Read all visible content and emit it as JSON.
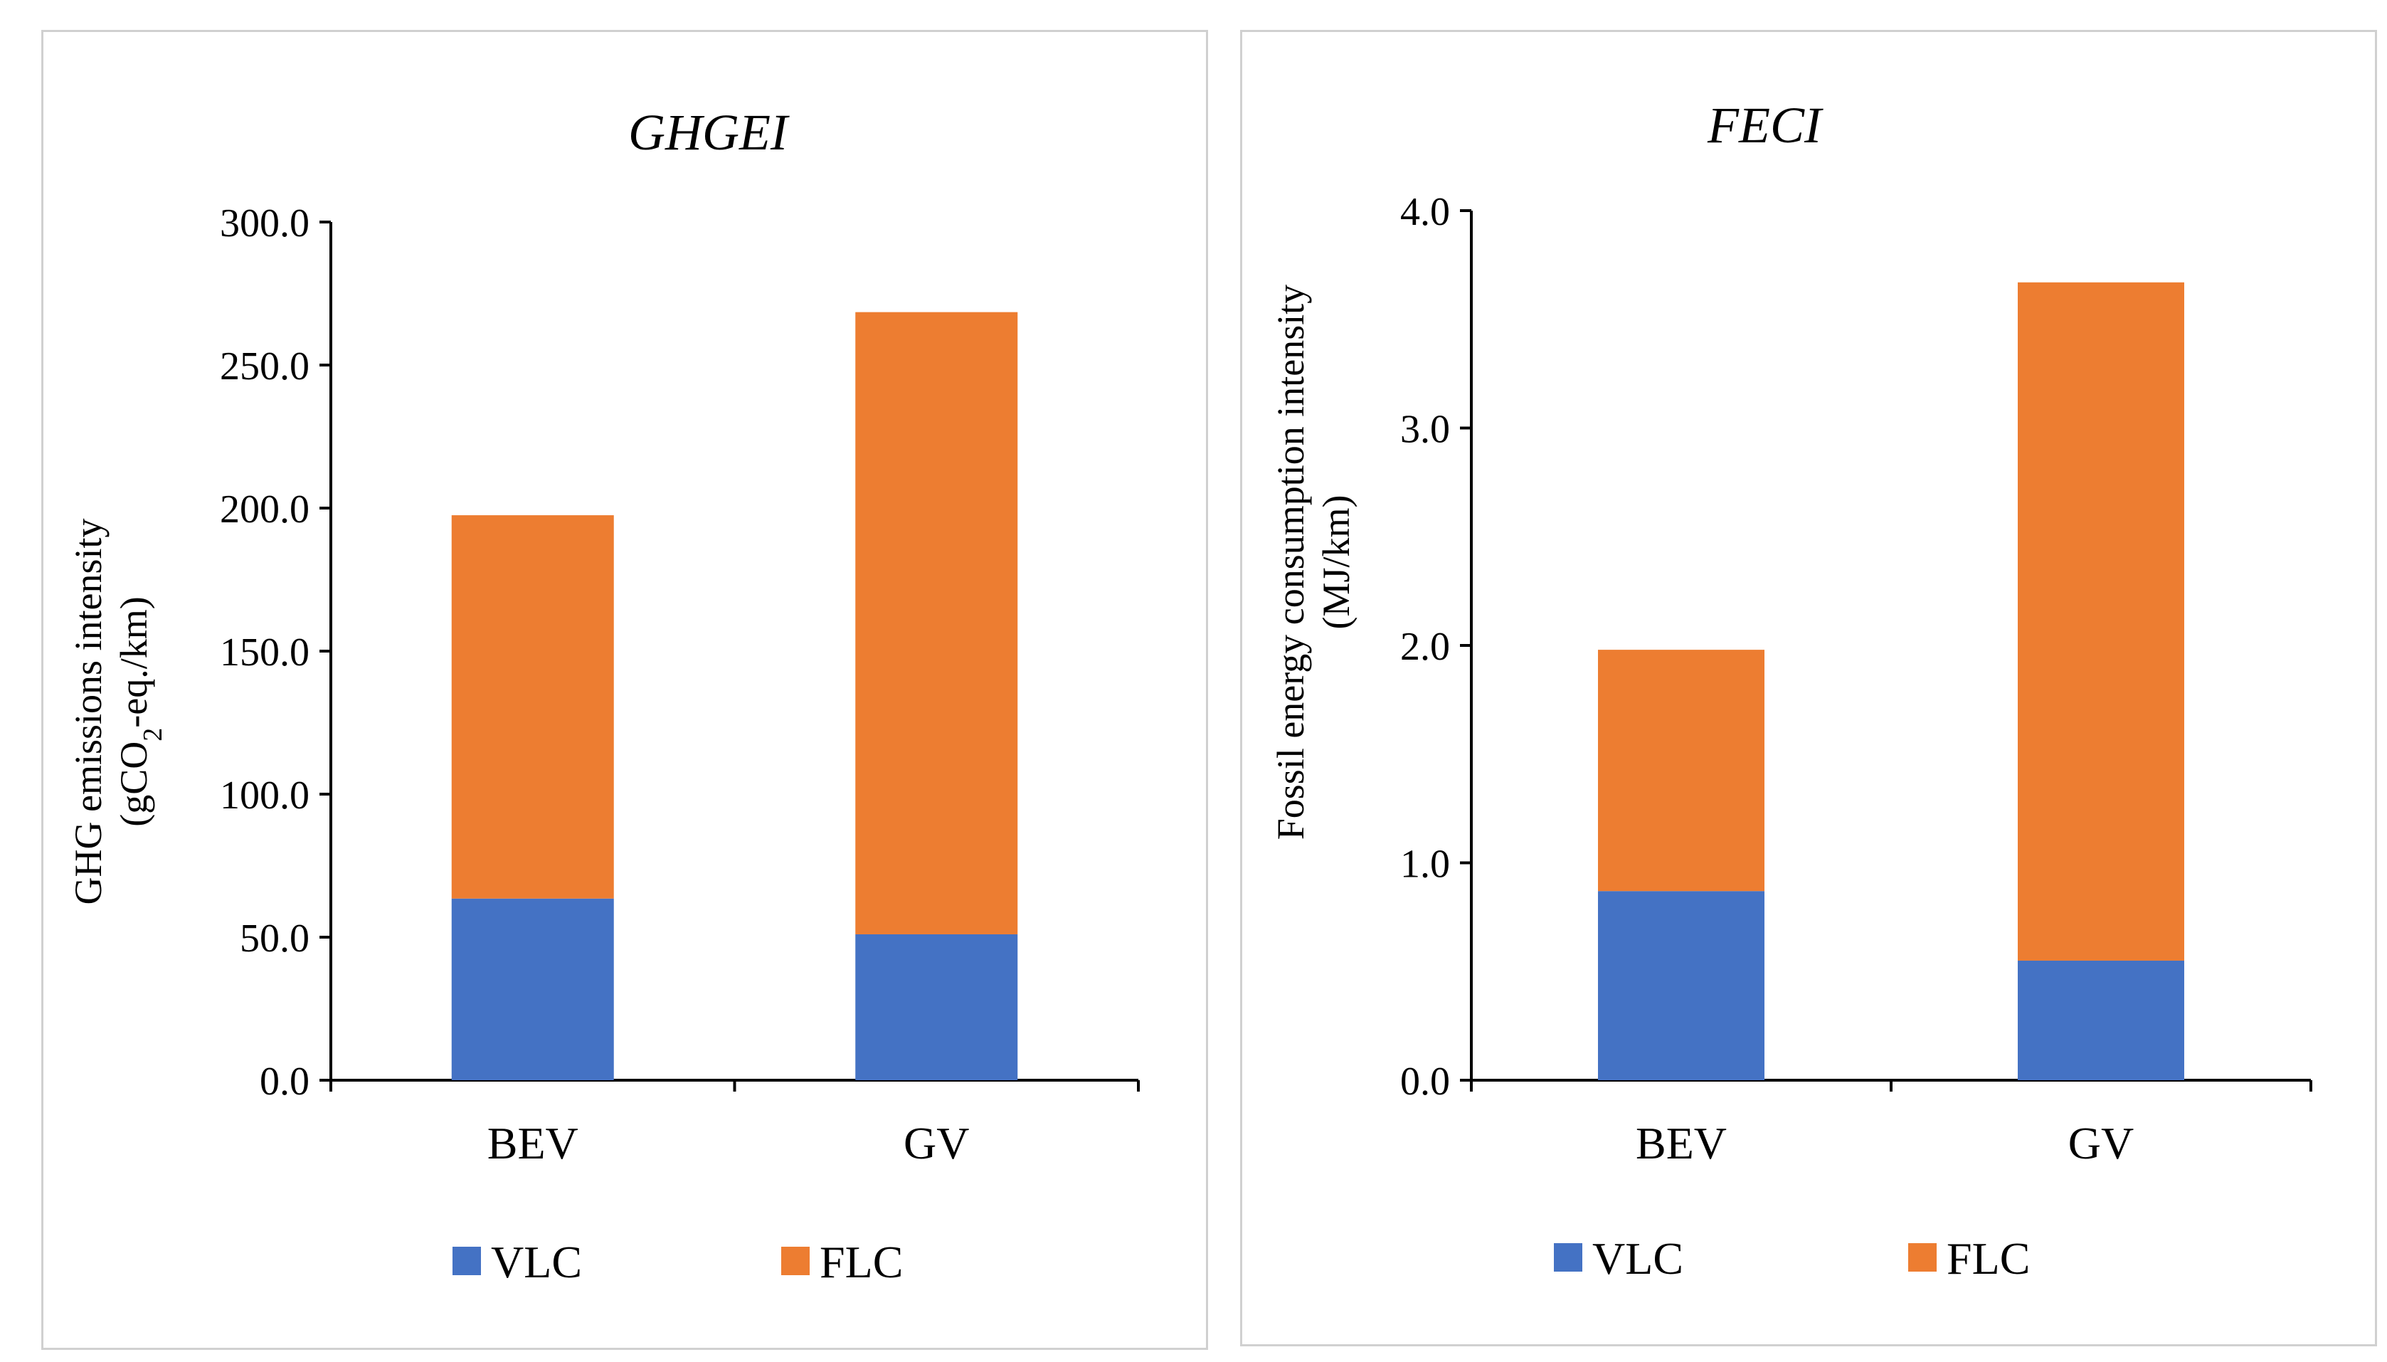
{
  "chart_data": [
    {
      "type": "bar",
      "stacked": true,
      "title": "GHGEI",
      "ylabel_line1": "GHG emissions intensity",
      "ylabel_line2_pre": "(gCO",
      "ylabel_line2_sub": "2",
      "ylabel_line2_post": "-eq./km)",
      "categories": [
        "BEV",
        "GV"
      ],
      "series": [
        {
          "name": "VLC",
          "values": [
            63.5,
            51.0
          ],
          "color": "#4472C4"
        },
        {
          "name": "FLC",
          "values": [
            134.0,
            217.5
          ],
          "color": "#ED7D31"
        }
      ],
      "ylim": [
        0,
        300
      ],
      "yticks": [
        "0.0",
        "50.0",
        "100.0",
        "150.0",
        "200.0",
        "250.0",
        "300.0"
      ],
      "legend": "bottom"
    },
    {
      "type": "bar",
      "stacked": true,
      "title": "FECI",
      "ylabel_line1": "Fossil energy consumption intensity",
      "ylabel_line2_pre": "(MJ/km)",
      "ylabel_line2_sub": "",
      "ylabel_line2_post": "",
      "categories": [
        "BEV",
        "GV"
      ],
      "series": [
        {
          "name": "VLC",
          "values": [
            0.87,
            0.55
          ],
          "color": "#4472C4"
        },
        {
          "name": "FLC",
          "values": [
            1.11,
            3.12
          ],
          "color": "#ED7D31"
        }
      ],
      "ylim": [
        0,
        4
      ],
      "yticks": [
        "0.0",
        "1.0",
        "2.0",
        "3.0",
        "4.0"
      ],
      "legend": "bottom"
    }
  ]
}
